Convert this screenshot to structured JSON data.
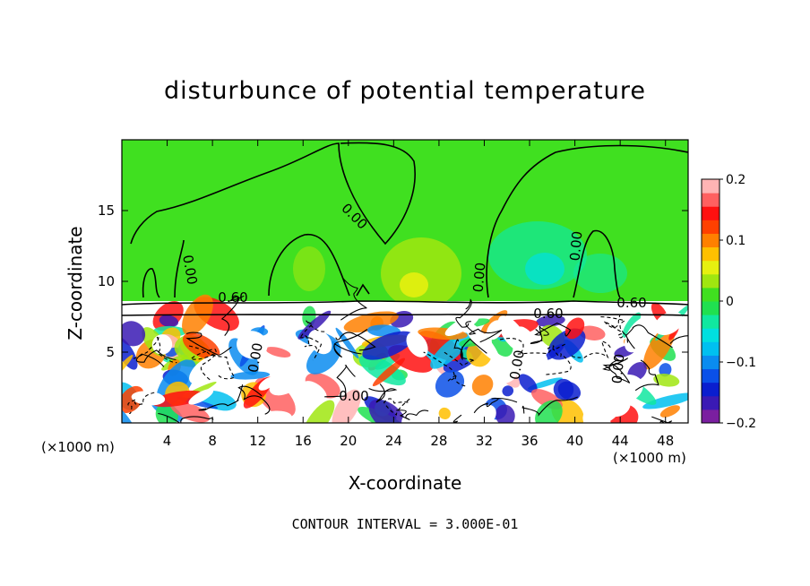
{
  "chart_data": {
    "type": "heatmap",
    "title": "disturbunce of potential temperature",
    "xlabel": "X-coordinate",
    "ylabel": "Z-coordinate",
    "x_unit": "(×1000 m)",
    "z_unit": "(×1000 m)",
    "footer": "CONTOUR INTERVAL = 3.000E-01",
    "xlim": [
      0,
      50
    ],
    "ylim": [
      0,
      20
    ],
    "x_ticks": [
      4,
      8,
      12,
      16,
      20,
      24,
      28,
      32,
      36,
      40,
      44,
      48
    ],
    "y_ticks": [
      5,
      10,
      15
    ],
    "colorbar": {
      "range": [
        -0.2,
        0.2
      ],
      "tick_labels": [
        "0.2",
        "0.1",
        "0",
        "−0.1",
        "−0.2"
      ],
      "tick_values": [
        0.2,
        0.1,
        0,
        -0.1,
        -0.2
      ],
      "colors": [
        "#7a1fa0",
        "#3a1ab4",
        "#0a1ecf",
        "#0a50e8",
        "#0a8cf0",
        "#00c0f0",
        "#00e0e0",
        "#10e8a0",
        "#20e050",
        "#40e020",
        "#a0e610",
        "#e6f010",
        "#ffc000",
        "#ff8000",
        "#ff4000",
        "#ff1010",
        "#ff6060",
        "#ffb4b4"
      ]
    },
    "contour_labels": [
      "0.00",
      "0.60"
    ],
    "upper_layer_value": 0,
    "boundary_layer_top": 9
  }
}
